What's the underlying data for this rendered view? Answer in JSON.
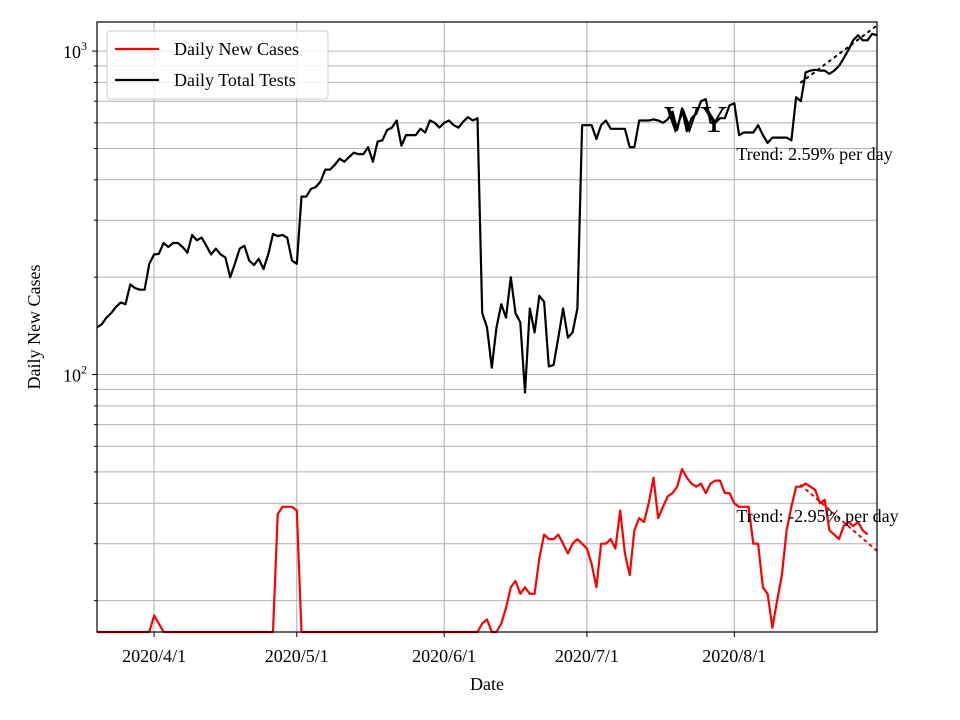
{
  "chart_data": {
    "type": "line",
    "title": "",
    "station_label": "WY",
    "xlabel": "Date",
    "ylabel": "Daily New Cases",
    "yscale": "log",
    "xlim": [
      "2020-03-20",
      "2020-08-31"
    ],
    "ylim": [
      16,
      1230
    ],
    "grid": true,
    "legend_position": "upper left",
    "x_ticks": [
      {
        "date": "2020-04-01",
        "label": "2020/4/1"
      },
      {
        "date": "2020-05-01",
        "label": "2020/5/1"
      },
      {
        "date": "2020-06-01",
        "label": "2020/6/1"
      },
      {
        "date": "2020-07-01",
        "label": "2020/7/1"
      },
      {
        "date": "2020-08-01",
        "label": "2020/8/1"
      }
    ],
    "y_ticks": [
      {
        "value": 100,
        "base": "10",
        "exp": "2"
      },
      {
        "value": 1000,
        "base": "10",
        "exp": "3"
      }
    ],
    "series": [
      {
        "name": "Daily New Cases",
        "color": "#ff0000",
        "points": [
          [
            "2020-03-20",
            15
          ],
          [
            "2020-03-25",
            15
          ],
          [
            "2020-03-31",
            15
          ],
          [
            "2020-04-01",
            18
          ],
          [
            "2020-04-02",
            17
          ],
          [
            "2020-04-03",
            15.5
          ],
          [
            "2020-04-05",
            15
          ],
          [
            "2020-04-20",
            15
          ],
          [
            "2020-04-26",
            15
          ],
          [
            "2020-04-27",
            37
          ],
          [
            "2020-04-28",
            39
          ],
          [
            "2020-04-29",
            39
          ],
          [
            "2020-04-30",
            39
          ],
          [
            "2020-05-01",
            38
          ],
          [
            "2020-05-02",
            15
          ],
          [
            "2020-05-14",
            15
          ],
          [
            "2020-05-15",
            16
          ],
          [
            "2020-05-16",
            16
          ],
          [
            "2020-05-17",
            15
          ],
          [
            "2020-05-26",
            15
          ],
          [
            "2020-05-27",
            16
          ],
          [
            "2020-05-28",
            15
          ],
          [
            "2020-06-08",
            15
          ],
          [
            "2020-06-09",
            17
          ],
          [
            "2020-06-10",
            17.5
          ],
          [
            "2020-06-11",
            16
          ],
          [
            "2020-06-12",
            16
          ],
          [
            "2020-06-13",
            17
          ],
          [
            "2020-06-14",
            19
          ],
          [
            "2020-06-15",
            22
          ],
          [
            "2020-06-16",
            23
          ],
          [
            "2020-06-17",
            21
          ],
          [
            "2020-06-18",
            22
          ],
          [
            "2020-06-19",
            21
          ],
          [
            "2020-06-20",
            21
          ],
          [
            "2020-06-21",
            27
          ],
          [
            "2020-06-22",
            32
          ],
          [
            "2020-06-23",
            31
          ],
          [
            "2020-06-24",
            31
          ],
          [
            "2020-06-25",
            32
          ],
          [
            "2020-06-26",
            30
          ],
          [
            "2020-06-27",
            28
          ],
          [
            "2020-06-28",
            30
          ],
          [
            "2020-06-29",
            31
          ],
          [
            "2020-06-30",
            30
          ],
          [
            "2020-07-01",
            29
          ],
          [
            "2020-07-02",
            26
          ],
          [
            "2020-07-03",
            22
          ],
          [
            "2020-07-04",
            30
          ],
          [
            "2020-07-05",
            30
          ],
          [
            "2020-07-06",
            31
          ],
          [
            "2020-07-07",
            29
          ],
          [
            "2020-07-08",
            38
          ],
          [
            "2020-07-09",
            28
          ],
          [
            "2020-07-10",
            24
          ],
          [
            "2020-07-11",
            33
          ],
          [
            "2020-07-12",
            36
          ],
          [
            "2020-07-13",
            35
          ],
          [
            "2020-07-14",
            40
          ],
          [
            "2020-07-15",
            48
          ],
          [
            "2020-07-16",
            36
          ],
          [
            "2020-07-17",
            39
          ],
          [
            "2020-07-18",
            42
          ],
          [
            "2020-07-19",
            43
          ],
          [
            "2020-07-20",
            45
          ],
          [
            "2020-07-21",
            51
          ],
          [
            "2020-07-22",
            48
          ],
          [
            "2020-07-23",
            46
          ],
          [
            "2020-07-24",
            45
          ],
          [
            "2020-07-25",
            46
          ],
          [
            "2020-07-26",
            43
          ],
          [
            "2020-07-27",
            46
          ],
          [
            "2020-07-28",
            47
          ],
          [
            "2020-07-29",
            47
          ],
          [
            "2020-07-30",
            43
          ],
          [
            "2020-07-31",
            43
          ],
          [
            "2020-08-01",
            40
          ],
          [
            "2020-08-02",
            39
          ],
          [
            "2020-08-03",
            39
          ],
          [
            "2020-08-04",
            39
          ],
          [
            "2020-08-05",
            30
          ],
          [
            "2020-08-06",
            30
          ],
          [
            "2020-08-07",
            22
          ],
          [
            "2020-08-08",
            21
          ],
          [
            "2020-08-09",
            16.5
          ],
          [
            "2020-08-10",
            20
          ],
          [
            "2020-08-11",
            24
          ],
          [
            "2020-08-12",
            33
          ],
          [
            "2020-08-13",
            39
          ],
          [
            "2020-08-14",
            45
          ],
          [
            "2020-08-15",
            45
          ],
          [
            "2020-08-16",
            46
          ],
          [
            "2020-08-17",
            45
          ],
          [
            "2020-08-18",
            44
          ],
          [
            "2020-08-19",
            40
          ],
          [
            "2020-08-20",
            41
          ],
          [
            "2020-08-21",
            33
          ],
          [
            "2020-08-22",
            32
          ],
          [
            "2020-08-23",
            31
          ],
          [
            "2020-08-24",
            34
          ],
          [
            "2020-08-25",
            35
          ],
          [
            "2020-08-26",
            34
          ],
          [
            "2020-08-27",
            35
          ],
          [
            "2020-08-28",
            33
          ],
          [
            "2020-08-29",
            32
          ]
        ]
      },
      {
        "name": "Daily Total Tests",
        "color": "#000000",
        "points": [
          [
            "2020-03-20",
            140
          ],
          [
            "2020-03-21",
            143
          ],
          [
            "2020-03-22",
            150
          ],
          [
            "2020-03-23",
            155
          ],
          [
            "2020-03-24",
            162
          ],
          [
            "2020-03-25",
            167
          ],
          [
            "2020-03-26",
            165
          ],
          [
            "2020-03-27",
            190
          ],
          [
            "2020-03-28",
            185
          ],
          [
            "2020-03-29",
            183
          ],
          [
            "2020-03-30",
            183
          ],
          [
            "2020-03-31",
            220
          ],
          [
            "2020-04-01",
            235
          ],
          [
            "2020-04-02",
            236
          ],
          [
            "2020-04-03",
            255
          ],
          [
            "2020-04-04",
            248
          ],
          [
            "2020-04-05",
            255
          ],
          [
            "2020-04-06",
            255
          ],
          [
            "2020-04-07",
            248
          ],
          [
            "2020-04-08",
            238
          ],
          [
            "2020-04-09",
            270
          ],
          [
            "2020-04-10",
            260
          ],
          [
            "2020-04-11",
            265
          ],
          [
            "2020-04-12",
            250
          ],
          [
            "2020-04-13",
            235
          ],
          [
            "2020-04-14",
            245
          ],
          [
            "2020-04-15",
            235
          ],
          [
            "2020-04-16",
            230
          ],
          [
            "2020-04-17",
            200
          ],
          [
            "2020-04-18",
            220
          ],
          [
            "2020-04-19",
            245
          ],
          [
            "2020-04-20",
            250
          ],
          [
            "2020-04-21",
            225
          ],
          [
            "2020-04-22",
            218
          ],
          [
            "2020-04-23",
            228
          ],
          [
            "2020-04-24",
            212
          ],
          [
            "2020-04-25",
            235
          ],
          [
            "2020-04-26",
            272
          ],
          [
            "2020-04-27",
            268
          ],
          [
            "2020-04-28",
            270
          ],
          [
            "2020-04-29",
            265
          ],
          [
            "2020-04-30",
            225
          ],
          [
            "2020-05-01",
            220
          ],
          [
            "2020-05-02",
            355
          ],
          [
            "2020-05-03",
            355
          ],
          [
            "2020-05-04",
            375
          ],
          [
            "2020-05-05",
            380
          ],
          [
            "2020-05-06",
            395
          ],
          [
            "2020-05-07",
            430
          ],
          [
            "2020-05-08",
            430
          ],
          [
            "2020-05-09",
            445
          ],
          [
            "2020-05-10",
            465
          ],
          [
            "2020-05-11",
            455
          ],
          [
            "2020-05-12",
            470
          ],
          [
            "2020-05-13",
            485
          ],
          [
            "2020-05-14",
            480
          ],
          [
            "2020-05-15",
            480
          ],
          [
            "2020-05-16",
            505
          ],
          [
            "2020-05-17",
            455
          ],
          [
            "2020-05-18",
            525
          ],
          [
            "2020-05-19",
            530
          ],
          [
            "2020-05-20",
            570
          ],
          [
            "2020-05-21",
            580
          ],
          [
            "2020-05-22",
            610
          ],
          [
            "2020-05-23",
            510
          ],
          [
            "2020-05-24",
            550
          ],
          [
            "2020-05-25",
            550
          ],
          [
            "2020-05-26",
            550
          ],
          [
            "2020-05-27",
            575
          ],
          [
            "2020-05-28",
            560
          ],
          [
            "2020-05-29",
            610
          ],
          [
            "2020-05-30",
            600
          ],
          [
            "2020-05-31",
            580
          ],
          [
            "2020-06-01",
            600
          ],
          [
            "2020-06-02",
            610
          ],
          [
            "2020-06-03",
            590
          ],
          [
            "2020-06-04",
            580
          ],
          [
            "2020-06-05",
            605
          ],
          [
            "2020-06-06",
            625
          ],
          [
            "2020-06-07",
            610
          ],
          [
            "2020-06-08",
            620
          ],
          [
            "2020-06-09",
            155
          ],
          [
            "2020-06-10",
            140
          ],
          [
            "2020-06-11",
            105
          ],
          [
            "2020-06-12",
            140
          ],
          [
            "2020-06-13",
            165
          ],
          [
            "2020-06-14",
            150
          ],
          [
            "2020-06-15",
            200
          ],
          [
            "2020-06-16",
            155
          ],
          [
            "2020-06-17",
            145
          ],
          [
            "2020-06-18",
            88
          ],
          [
            "2020-06-19",
            160
          ],
          [
            "2020-06-20",
            135
          ],
          [
            "2020-06-21",
            175
          ],
          [
            "2020-06-22",
            168
          ],
          [
            "2020-06-23",
            106
          ],
          [
            "2020-06-24",
            107
          ],
          [
            "2020-06-25",
            130
          ],
          [
            "2020-06-26",
            160
          ],
          [
            "2020-06-27",
            130
          ],
          [
            "2020-06-28",
            135
          ],
          [
            "2020-06-29",
            160
          ],
          [
            "2020-06-30",
            590
          ],
          [
            "2020-07-01",
            590
          ],
          [
            "2020-07-02",
            590
          ],
          [
            "2020-07-03",
            535
          ],
          [
            "2020-07-04",
            590
          ],
          [
            "2020-07-05",
            610
          ],
          [
            "2020-07-06",
            575
          ],
          [
            "2020-07-07",
            575
          ],
          [
            "2020-07-08",
            575
          ],
          [
            "2020-07-09",
            575
          ],
          [
            "2020-07-10",
            505
          ],
          [
            "2020-07-11",
            505
          ],
          [
            "2020-07-12",
            610
          ],
          [
            "2020-07-13",
            610
          ],
          [
            "2020-07-14",
            610
          ],
          [
            "2020-07-15",
            615
          ],
          [
            "2020-07-16",
            610
          ],
          [
            "2020-07-17",
            600
          ],
          [
            "2020-07-18",
            615
          ],
          [
            "2020-07-19",
            650
          ],
          [
            "2020-07-20",
            570
          ],
          [
            "2020-07-21",
            665
          ],
          [
            "2020-07-22",
            565
          ],
          [
            "2020-07-23",
            620
          ],
          [
            "2020-07-24",
            640
          ],
          [
            "2020-07-25",
            700
          ],
          [
            "2020-07-26",
            710
          ],
          [
            "2020-07-27",
            600
          ],
          [
            "2020-07-28",
            600
          ],
          [
            "2020-07-29",
            620
          ],
          [
            "2020-07-30",
            620
          ],
          [
            "2020-07-31",
            680
          ],
          [
            "2020-08-01",
            690
          ],
          [
            "2020-08-02",
            550
          ],
          [
            "2020-08-03",
            560
          ],
          [
            "2020-08-04",
            560
          ],
          [
            "2020-08-05",
            560
          ],
          [
            "2020-08-06",
            590
          ],
          [
            "2020-08-07",
            550
          ],
          [
            "2020-08-08",
            520
          ],
          [
            "2020-08-09",
            540
          ],
          [
            "2020-08-10",
            540
          ],
          [
            "2020-08-11",
            540
          ],
          [
            "2020-08-12",
            540
          ],
          [
            "2020-08-13",
            530
          ],
          [
            "2020-08-14",
            720
          ],
          [
            "2020-08-15",
            700
          ],
          [
            "2020-08-16",
            860
          ],
          [
            "2020-08-17",
            870
          ],
          [
            "2020-08-18",
            875
          ],
          [
            "2020-08-19",
            870
          ],
          [
            "2020-08-20",
            870
          ],
          [
            "2020-08-21",
            850
          ],
          [
            "2020-08-22",
            870
          ],
          [
            "2020-08-23",
            900
          ],
          [
            "2020-08-24",
            950
          ],
          [
            "2020-08-25",
            1010
          ],
          [
            "2020-08-26",
            1080
          ],
          [
            "2020-08-27",
            1120
          ],
          [
            "2020-08-28",
            1080
          ],
          [
            "2020-08-29",
            1080
          ],
          [
            "2020-08-30",
            1130
          ],
          [
            "2020-08-31",
            1120
          ]
        ]
      }
    ],
    "trends": [
      {
        "series": "Daily New Cases",
        "label": "Trend: -2.95% per day",
        "color": "#ff0000",
        "style": "dotted",
        "start": [
          "2020-08-15",
          45.5
        ],
        "end": [
          "2020-08-31",
          28.5
        ],
        "label_anchor": [
          "2020-08-01",
          36.5
        ]
      },
      {
        "series": "Daily Total Tests",
        "label": "Trend: 2.59% per day",
        "color": "#000000",
        "style": "dotted",
        "start": [
          "2020-08-15",
          800
        ],
        "end": [
          "2020-08-31",
          1200
        ],
        "label_anchor": [
          "2020-08-01",
          480
        ]
      }
    ]
  }
}
